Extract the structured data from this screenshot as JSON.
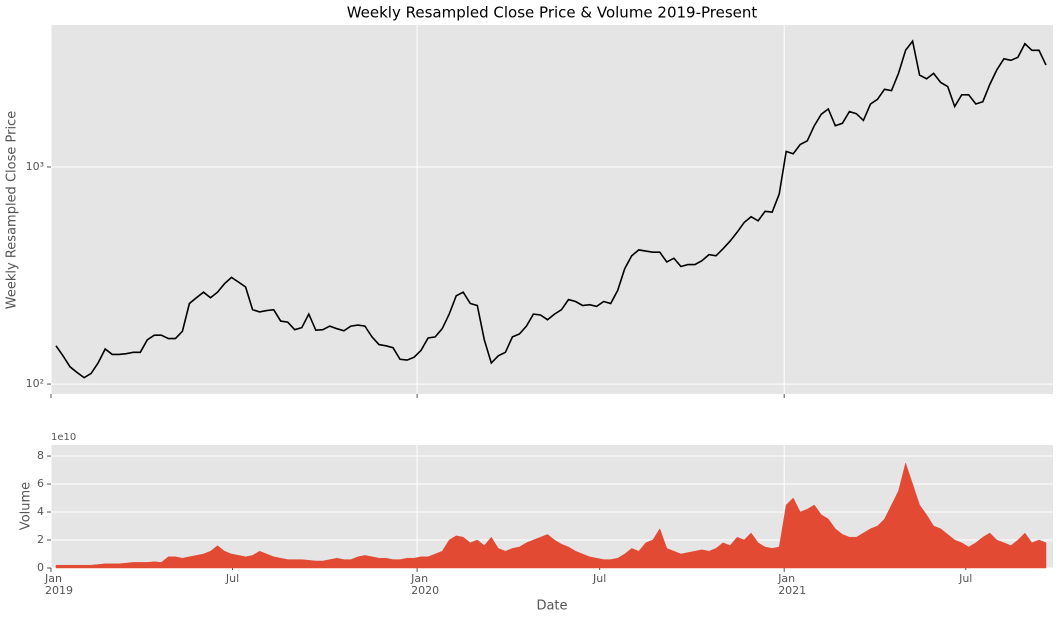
{
  "chart_data": [
    {
      "type": "line",
      "title": "Weekly Resampled Close Price & Volume 2019-Present",
      "ylabel": "Weekly Resampled Close Price",
      "color": "#000000",
      "log_y": true,
      "grid": true,
      "xlim": [
        "2019-01-01",
        "2021-09-26"
      ],
      "xticks": [
        "2019-01-01",
        "2020-01-01",
        "2021-01-01"
      ],
      "ylim": [
        90,
        4510
      ],
      "yticks": [
        {
          "value": 100,
          "label": "10²"
        },
        {
          "value": 1000,
          "label": "10³"
        }
      ],
      "x": [
        "2019-01-06",
        "2019-01-13",
        "2019-01-20",
        "2019-01-27",
        "2019-02-03",
        "2019-02-10",
        "2019-02-17",
        "2019-02-24",
        "2019-03-03",
        "2019-03-10",
        "2019-03-17",
        "2019-03-24",
        "2019-03-31",
        "2019-04-07",
        "2019-04-14",
        "2019-04-21",
        "2019-04-28",
        "2019-05-05",
        "2019-05-12",
        "2019-05-19",
        "2019-05-26",
        "2019-06-02",
        "2019-06-09",
        "2019-06-16",
        "2019-06-23",
        "2019-06-30",
        "2019-07-07",
        "2019-07-14",
        "2019-07-21",
        "2019-07-28",
        "2019-08-04",
        "2019-08-11",
        "2019-08-18",
        "2019-08-25",
        "2019-09-01",
        "2019-09-08",
        "2019-09-15",
        "2019-09-22",
        "2019-09-29",
        "2019-10-06",
        "2019-10-13",
        "2019-10-20",
        "2019-10-27",
        "2019-11-03",
        "2019-11-10",
        "2019-11-17",
        "2019-11-24",
        "2019-12-01",
        "2019-12-08",
        "2019-12-15",
        "2019-12-22",
        "2019-12-29",
        "2020-01-05",
        "2020-01-12",
        "2020-01-19",
        "2020-01-26",
        "2020-02-02",
        "2020-02-09",
        "2020-02-16",
        "2020-02-23",
        "2020-03-01",
        "2020-03-08",
        "2020-03-15",
        "2020-03-22",
        "2020-03-29",
        "2020-04-05",
        "2020-04-12",
        "2020-04-19",
        "2020-04-26",
        "2020-05-03",
        "2020-05-10",
        "2020-05-17",
        "2020-05-24",
        "2020-05-31",
        "2020-06-07",
        "2020-06-14",
        "2020-06-21",
        "2020-06-28",
        "2020-07-05",
        "2020-07-12",
        "2020-07-19",
        "2020-07-26",
        "2020-08-02",
        "2020-08-09",
        "2020-08-16",
        "2020-08-23",
        "2020-08-30",
        "2020-09-06",
        "2020-09-13",
        "2020-09-20",
        "2020-09-27",
        "2020-10-04",
        "2020-10-11",
        "2020-10-18",
        "2020-10-25",
        "2020-11-01",
        "2020-11-08",
        "2020-11-15",
        "2020-11-22",
        "2020-11-29",
        "2020-12-06",
        "2020-12-13",
        "2020-12-20",
        "2020-12-27",
        "2021-01-03",
        "2021-01-10",
        "2021-01-17",
        "2021-01-24",
        "2021-01-31",
        "2021-02-07",
        "2021-02-14",
        "2021-02-21",
        "2021-02-28",
        "2021-03-07",
        "2021-03-14",
        "2021-03-21",
        "2021-03-28",
        "2021-04-04",
        "2021-04-11",
        "2021-04-18",
        "2021-04-25",
        "2021-05-02",
        "2021-05-09",
        "2021-05-16",
        "2021-05-23",
        "2021-05-30",
        "2021-06-06",
        "2021-06-13",
        "2021-06-20",
        "2021-06-27",
        "2021-07-04",
        "2021-07-11",
        "2021-07-18",
        "2021-07-25",
        "2021-08-01",
        "2021-08-08",
        "2021-08-15",
        "2021-08-22",
        "2021-08-29",
        "2021-09-05",
        "2021-09-12",
        "2021-09-19"
      ],
      "values": [
        150,
        135,
        120,
        113,
        107,
        112,
        125,
        145,
        137,
        137,
        138,
        140,
        140,
        160,
        168,
        168,
        162,
        162,
        175,
        235,
        250,
        265,
        250,
        265,
        290,
        310,
        295,
        280,
        220,
        215,
        218,
        220,
        195,
        193,
        178,
        182,
        210,
        177,
        178,
        185,
        180,
        176,
        185,
        187,
        185,
        165,
        152,
        150,
        147,
        130,
        129,
        133,
        143,
        163,
        165,
        180,
        210,
        255,
        265,
        235,
        230,
        160,
        125,
        135,
        140,
        165,
        170,
        185,
        210,
        208,
        198,
        210,
        220,
        245,
        240,
        230,
        232,
        228,
        240,
        235,
        270,
        340,
        390,
        415,
        410,
        405,
        405,
        365,
        380,
        348,
        355,
        355,
        370,
        395,
        390,
        420,
        455,
        500,
        555,
        590,
        565,
        625,
        620,
        750,
        1180,
        1150,
        1270,
        1320,
        1550,
        1750,
        1850,
        1550,
        1590,
        1800,
        1760,
        1640,
        1950,
        2050,
        2280,
        2250,
        2700,
        3450,
        3800,
        2650,
        2550,
        2700,
        2450,
        2350,
        1900,
        2150,
        2150,
        1950,
        2000,
        2400,
        2800,
        3150,
        3100,
        3200,
        3700,
        3450,
        3450,
        2950
      ]
    },
    {
      "type": "area",
      "xlabel": "Date",
      "ylabel": "Volume",
      "y_offset_label": "1e10",
      "color": "#E24A33",
      "grid": true,
      "xlim": [
        "2019-01-01",
        "2021-09-26"
      ],
      "xticks": [
        {
          "value": "2019-01-01",
          "label": "Jan\n2019"
        },
        {
          "value": "2020-01-01",
          "label": "Jan\n2020"
        },
        {
          "value": "2021-01-01",
          "label": "Jan\n2021"
        }
      ],
      "xticks_minor": [
        {
          "value": "2019-07-01",
          "label": "Jul"
        },
        {
          "value": "2020-07-01",
          "label": "Jul"
        },
        {
          "value": "2021-07-01",
          "label": "Jul"
        }
      ],
      "ylim": [
        0,
        87900000000.0
      ],
      "yticks": [
        0,
        {
          "value": 20000000000.0,
          "label": "2"
        },
        {
          "value": 40000000000.0,
          "label": "4"
        },
        {
          "value": 60000000000.0,
          "label": "6"
        },
        {
          "value": 80000000000.0,
          "label": "8"
        }
      ],
      "x": [
        "2019-01-06",
        "2019-01-13",
        "2019-01-20",
        "2019-01-27",
        "2019-02-03",
        "2019-02-10",
        "2019-02-17",
        "2019-02-24",
        "2019-03-03",
        "2019-03-10",
        "2019-03-17",
        "2019-03-24",
        "2019-03-31",
        "2019-04-07",
        "2019-04-14",
        "2019-04-21",
        "2019-04-28",
        "2019-05-05",
        "2019-05-12",
        "2019-05-19",
        "2019-05-26",
        "2019-06-02",
        "2019-06-09",
        "2019-06-16",
        "2019-06-23",
        "2019-06-30",
        "2019-07-07",
        "2019-07-14",
        "2019-07-21",
        "2019-07-28",
        "2019-08-04",
        "2019-08-11",
        "2019-08-18",
        "2019-08-25",
        "2019-09-01",
        "2019-09-08",
        "2019-09-15",
        "2019-09-22",
        "2019-09-29",
        "2019-10-06",
        "2019-10-13",
        "2019-10-20",
        "2019-10-27",
        "2019-11-03",
        "2019-11-10",
        "2019-11-17",
        "2019-11-24",
        "2019-12-01",
        "2019-12-08",
        "2019-12-15",
        "2019-12-22",
        "2019-12-29",
        "2020-01-05",
        "2020-01-12",
        "2020-01-19",
        "2020-01-26",
        "2020-02-02",
        "2020-02-09",
        "2020-02-16",
        "2020-02-23",
        "2020-03-01",
        "2020-03-08",
        "2020-03-15",
        "2020-03-22",
        "2020-03-29",
        "2020-04-05",
        "2020-04-12",
        "2020-04-19",
        "2020-04-26",
        "2020-05-03",
        "2020-05-10",
        "2020-05-17",
        "2020-05-24",
        "2020-05-31",
        "2020-06-07",
        "2020-06-14",
        "2020-06-21",
        "2020-06-28",
        "2020-07-05",
        "2020-07-12",
        "2020-07-19",
        "2020-07-26",
        "2020-08-02",
        "2020-08-09",
        "2020-08-16",
        "2020-08-23",
        "2020-08-30",
        "2020-09-06",
        "2020-09-13",
        "2020-09-20",
        "2020-09-27",
        "2020-10-04",
        "2020-10-11",
        "2020-10-18",
        "2020-10-25",
        "2020-11-01",
        "2020-11-08",
        "2020-11-15",
        "2020-11-22",
        "2020-11-29",
        "2020-12-06",
        "2020-12-13",
        "2020-12-20",
        "2020-12-27",
        "2021-01-03",
        "2021-01-10",
        "2021-01-17",
        "2021-01-24",
        "2021-01-31",
        "2021-02-07",
        "2021-02-14",
        "2021-02-21",
        "2021-02-28",
        "2021-03-07",
        "2021-03-14",
        "2021-03-21",
        "2021-03-28",
        "2021-04-04",
        "2021-04-11",
        "2021-04-18",
        "2021-04-25",
        "2021-05-02",
        "2021-05-09",
        "2021-05-16",
        "2021-05-23",
        "2021-05-30",
        "2021-06-06",
        "2021-06-13",
        "2021-06-20",
        "2021-06-27",
        "2021-07-04",
        "2021-07-11",
        "2021-07-18",
        "2021-07-25",
        "2021-08-01",
        "2021-08-08",
        "2021-08-15",
        "2021-08-22",
        "2021-08-29",
        "2021-09-05",
        "2021-09-12",
        "2021-09-19"
      ],
      "values": [
        2000000000.0,
        2000000000.0,
        2000000000.0,
        2000000000.0,
        2000000000.0,
        2000000000.0,
        2500000000.0,
        3000000000.0,
        3000000000.0,
        3000000000.0,
        3500000000.0,
        4000000000.0,
        4000000000.0,
        4000000000.0,
        4500000000.0,
        4000000000.0,
        8000000000.0,
        8000000000.0,
        7000000000.0,
        8000000000.0,
        9000000000.0,
        10000000000.0,
        12000000000.0,
        16000000000.0,
        12000000000.0,
        10000000000.0,
        9000000000.0,
        8000000000.0,
        9000000000.0,
        12000000000.0,
        10000000000.0,
        8000000000.0,
        7000000000.0,
        6000000000.0,
        6000000000.0,
        6000000000.0,
        5500000000.0,
        5000000000.0,
        5000000000.0,
        6000000000.0,
        7000000000.0,
        6000000000.0,
        6000000000.0,
        8000000000.0,
        9000000000.0,
        8000000000.0,
        7000000000.0,
        7000000000.0,
        6000000000.0,
        6000000000.0,
        7000000000.0,
        7000000000.0,
        8000000000.0,
        8000000000.0,
        10000000000.0,
        12000000000.0,
        20000000000.0,
        23000000000.0,
        22000000000.0,
        18000000000.0,
        20000000000.0,
        16000000000.0,
        22000000000.0,
        14000000000.0,
        12000000000.0,
        14000000000.0,
        15000000000.0,
        18000000000.0,
        20000000000.0,
        22000000000.0,
        24000000000.0,
        20000000000.0,
        17000000000.0,
        15000000000.0,
        12000000000.0,
        10000000000.0,
        8000000000.0,
        7000000000.0,
        6000000000.0,
        6000000000.0,
        7000000000.0,
        10000000000.0,
        14000000000.0,
        12000000000.0,
        18000000000.0,
        20000000000.0,
        28000000000.0,
        14000000000.0,
        12000000000.0,
        10000000000.0,
        11000000000.0,
        12000000000.0,
        13000000000.0,
        12000000000.0,
        14000000000.0,
        18000000000.0,
        16000000000.0,
        22000000000.0,
        20000000000.0,
        25000000000.0,
        18000000000.0,
        15000000000.0,
        14000000000.0,
        15000000000.0,
        45000000000.0,
        50000000000.0,
        40000000000.0,
        42000000000.0,
        45000000000.0,
        38000000000.0,
        35000000000.0,
        28000000000.0,
        24000000000.0,
        22000000000.0,
        22000000000.0,
        25000000000.0,
        28000000000.0,
        30000000000.0,
        35000000000.0,
        45000000000.0,
        55000000000.0,
        75000000000.0,
        60000000000.0,
        45000000000.0,
        38000000000.0,
        30000000000.0,
        28000000000.0,
        24000000000.0,
        20000000000.0,
        18000000000.0,
        15000000000.0,
        18000000000.0,
        22000000000.0,
        25000000000.0,
        20000000000.0,
        18000000000.0,
        16000000000.0,
        20000000000.0,
        25000000000.0,
        18000000000.0,
        20000000000.0,
        18000000000.0
      ]
    }
  ]
}
